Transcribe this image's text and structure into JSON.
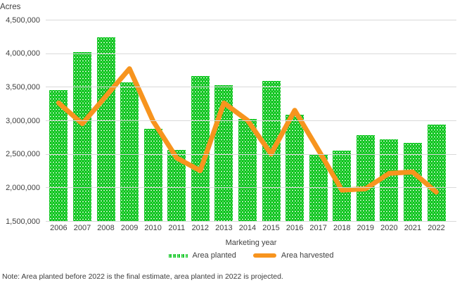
{
  "chart_data": {
    "type": "bar",
    "subtype": "bar-line-combo",
    "title": "",
    "xlabel": "Marketing year",
    "ylabel": "Acres",
    "categories": [
      "2006",
      "2007",
      "2008",
      "2009",
      "2010",
      "2011",
      "2012",
      "2013",
      "2014",
      "2015",
      "2016",
      "2017",
      "2018",
      "2019",
      "2020",
      "2021",
      "2022"
    ],
    "series": [
      {
        "name": "Area planted",
        "chart_type": "bar",
        "color": "#00c213",
        "values": [
          3450000,
          4020000,
          4240000,
          3570000,
          2870000,
          2560000,
          3660000,
          3530000,
          3020000,
          3590000,
          3080000,
          2490000,
          2550000,
          2780000,
          2720000,
          2660000,
          2940000
        ]
      },
      {
        "name": "Area harvested",
        "chart_type": "line",
        "color": "#f7941e",
        "values": [
          3260000,
          2950000,
          3360000,
          3770000,
          2990000,
          2440000,
          2250000,
          3260000,
          3000000,
          2500000,
          3150000,
          2560000,
          1960000,
          1980000,
          2210000,
          2230000,
          1930000
        ]
      }
    ],
    "ylim": [
      1500000,
      4500000
    ],
    "ytick_interval": 500000,
    "ytick_labels": [
      "4,500,000",
      "4,000,000",
      "3,500,000",
      "3,000,000",
      "2,500,000",
      "2,000,000",
      "1,500,000"
    ],
    "grid": true,
    "legend_position": "bottom"
  },
  "labels": {
    "y_axis_title": "Acres",
    "x_axis_title": "Marketing year"
  },
  "legend": {
    "planted_label": "Area planted",
    "harvested_label": "Area harvested"
  },
  "note": "Note: Area planted  before 2022 is the final estimate,  area planted  in 2022 is projected.",
  "colors": {
    "planted_green": "#00c213",
    "harvested_orange": "#f7941e",
    "gridline": "#d9d9d9",
    "text": "#404040"
  }
}
